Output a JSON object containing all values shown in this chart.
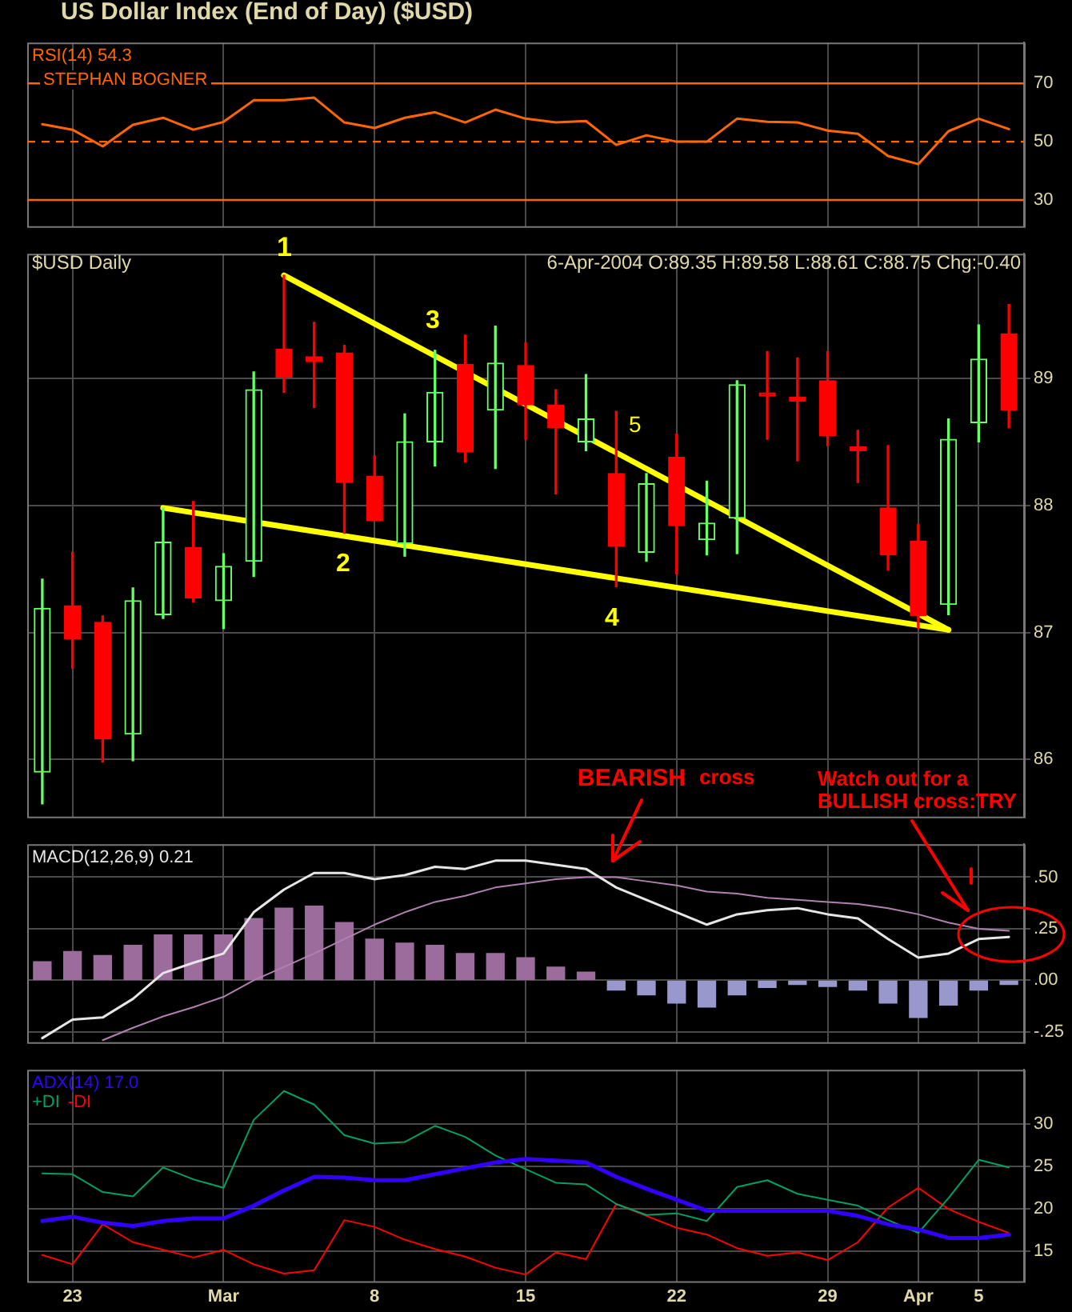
{
  "chart_data": [
    {
      "type": "line",
      "title": "US Dollar Index (End of Day) ($USD)",
      "series": [
        {
          "name": "RSI(14) 54.3",
          "color": "#ff6600",
          "values": [
            56.0,
            54.1,
            48.4,
            55.8,
            58.2,
            54.1,
            56.8,
            64.2,
            64.2,
            65.1,
            56.6,
            54.7,
            58.2,
            60.1,
            56.6,
            61.0,
            57.9,
            56.6,
            57.1,
            48.9,
            52.2,
            50.0,
            50.0,
            57.9,
            56.8,
            56.6,
            53.8,
            52.7,
            45.1,
            42.3,
            53.6,
            57.9,
            54.3
          ]
        }
      ],
      "ylim": [
        21,
        84
      ],
      "yticks": [
        30,
        50,
        70
      ],
      "ref_lines": [
        {
          "axis": "y",
          "value": 70,
          "color": "#ff6600",
          "line_style": "solid"
        },
        {
          "axis": "y",
          "value": 50,
          "color": "#ff6600",
          "line_style": "dashed"
        },
        {
          "axis": "y",
          "value": 30,
          "color": "#ff6600",
          "line_style": "solid"
        }
      ],
      "annotations": [
        "STEPHAN BOGNER"
      ],
      "grid": "x",
      "legend": "top left",
      "tick_labels": "y"
    },
    {
      "type": "candlestick",
      "title": "$USD Daily",
      "ohlc": [
        [
          85.9,
          87.42,
          85.65,
          87.19
        ],
        [
          87.21,
          87.63,
          86.72,
          86.95
        ],
        [
          87.08,
          87.13,
          85.98,
          86.16
        ],
        [
          86.2,
          87.35,
          85.99,
          87.25
        ],
        [
          87.14,
          87.98,
          87.11,
          87.71
        ],
        [
          87.67,
          88.03,
          87.24,
          87.27
        ],
        [
          87.25,
          87.62,
          87.03,
          87.52
        ],
        [
          87.56,
          89.05,
          87.44,
          88.91
        ],
        [
          89.23,
          89.81,
          88.89,
          89.01
        ],
        [
          89.17,
          89.44,
          88.77,
          89.13
        ],
        [
          89.2,
          89.26,
          87.78,
          88.18
        ],
        [
          88.23,
          88.39,
          87.88,
          87.88
        ],
        [
          87.7,
          88.72,
          87.6,
          88.5
        ],
        [
          88.5,
          89.22,
          88.31,
          88.89
        ],
        [
          89.11,
          89.34,
          88.34,
          88.42
        ],
        [
          88.75,
          89.41,
          88.29,
          89.12
        ],
        [
          89.1,
          89.28,
          88.52,
          88.79
        ],
        [
          88.79,
          88.91,
          88.09,
          88.61
        ],
        [
          88.5,
          89.03,
          88.43,
          88.68
        ],
        [
          88.25,
          88.74,
          87.36,
          87.68
        ],
        [
          87.63,
          88.25,
          87.56,
          88.17
        ],
        [
          88.38,
          88.56,
          87.46,
          87.84
        ],
        [
          87.73,
          88.19,
          87.61,
          87.86
        ],
        [
          87.9,
          88.98,
          87.62,
          88.95
        ],
        [
          88.88,
          89.21,
          88.52,
          88.86
        ],
        [
          88.85,
          89.16,
          88.35,
          88.82
        ],
        [
          88.98,
          89.21,
          88.47,
          88.55
        ],
        [
          88.46,
          88.59,
          88.18,
          88.43
        ],
        [
          87.98,
          88.47,
          87.49,
          87.61
        ],
        [
          87.72,
          87.85,
          87.03,
          87.13
        ],
        [
          87.22,
          88.68,
          87.14,
          88.52
        ],
        [
          88.65,
          89.42,
          88.5,
          89.15
        ],
        [
          89.35,
          89.58,
          88.61,
          88.75
        ]
      ],
      "colors": [
        "#66ff66",
        "#ff0000",
        "#ff0000",
        "#66ff66",
        "#66ff66",
        "#ff0000",
        "#66ff66",
        "#66ff66",
        "#ff0000",
        "#ff0000",
        "#ff0000",
        "#ff0000",
        "#66ff66",
        "#66ff66",
        "#ff0000",
        "#66ff66",
        "#ff0000",
        "#ff0000",
        "#66ff66",
        "#ff0000",
        "#66ff66",
        "#ff0000",
        "#66ff66",
        "#66ff66",
        "#ff0000",
        "#ff0000",
        "#ff0000",
        "#ff0000",
        "#ff0000",
        "#ff0000",
        "#66ff66",
        "#66ff66",
        "#ff0000"
      ],
      "series": [
        {
          "type": "line",
          "color": "#ffff00",
          "values": [
            null,
            null,
            null,
            null,
            null,
            null,
            null,
            null,
            89.81,
            null,
            null,
            null,
            null,
            null,
            null,
            null,
            null,
            null,
            null,
            null,
            null,
            null,
            null,
            null,
            null,
            null,
            null,
            null,
            null,
            null,
            87.02,
            null,
            null
          ]
        },
        {
          "type": "line",
          "color": "#ffff00",
          "values": [
            null,
            null,
            null,
            null,
            87.98,
            null,
            null,
            null,
            null,
            null,
            null,
            null,
            null,
            null,
            null,
            null,
            null,
            null,
            null,
            null,
            null,
            null,
            null,
            null,
            null,
            null,
            null,
            null,
            null,
            null,
            87.02,
            null,
            null
          ]
        }
      ],
      "ylim": [
        85.55,
        89.98
      ],
      "yticks": [
        86,
        87,
        88,
        89
      ],
      "annotations": [
        "6-Apr-2004 O:89.35 H:89.58 L:88.61 C:88.75 Chg:-0.40",
        "1",
        "2",
        "3",
        "4",
        "5"
      ],
      "grid": true,
      "tick_labels": "y"
    },
    {
      "type": "line",
      "series": [
        {
          "name": "MACD(12,26,9) 0.21",
          "color": "#e6e6e6",
          "values": [
            -0.28,
            -0.19,
            -0.18,
            -0.09,
            0.035,
            0.085,
            0.13,
            0.33,
            0.44,
            0.52,
            0.52,
            0.49,
            0.51,
            0.55,
            0.54,
            0.58,
            0.58,
            0.56,
            0.54,
            0.45,
            0.39,
            0.33,
            0.27,
            0.32,
            0.34,
            0.35,
            0.32,
            0.3,
            0.2,
            0.11,
            0.13,
            0.2,
            0.21
          ]
        },
        {
          "color": "#b080b0",
          "values": [
            null,
            null,
            -0.29,
            -0.23,
            -0.175,
            -0.13,
            -0.08,
            0,
            0.065,
            0.13,
            0.2,
            0.27,
            0.33,
            0.38,
            0.41,
            0.45,
            0.47,
            0.49,
            0.5,
            0.5,
            0.48,
            0.46,
            0.43,
            0.42,
            0.4,
            0.39,
            0.38,
            0.37,
            0.35,
            0.32,
            0.28,
            0.25,
            0.24
          ]
        },
        {
          "type": "bar",
          "colors": [
            "#9c6c9c",
            "#9c6c9c",
            "#9c6c9c",
            "#9c6c9c",
            "#9c6c9c",
            "#9c6c9c",
            "#9c6c9c",
            "#9c6c9c",
            "#9c6c9c",
            "#9c6c9c",
            "#9c6c9c",
            "#9c6c9c",
            "#9c6c9c",
            "#9c6c9c",
            "#9c6c9c",
            "#9c6c9c",
            "#9c6c9c",
            "#9c6c9c",
            "#9c6c9c",
            "#9898cc",
            "#9898cc",
            "#9898cc",
            "#9898cc",
            "#9898cc",
            "#9898cc",
            "#9898cc",
            "#9898cc",
            "#9898cc",
            "#9898cc",
            "#9898cc",
            "#9898cc",
            "#9898cc",
            "#9898cc"
          ],
          "values": [
            0.09,
            0.14,
            0.12,
            0.17,
            0.22,
            0.22,
            0.22,
            0.3,
            0.35,
            0.36,
            0.28,
            0.2,
            0.18,
            0.17,
            0.13,
            0.13,
            0.11,
            0.064,
            0.04,
            -0.047,
            -0.07,
            -0.11,
            -0.13,
            -0.07,
            -0.035,
            -0.02,
            -0.03,
            -0.047,
            -0.11,
            -0.18,
            -0.12,
            -0.047,
            -0.02
          ]
        }
      ],
      "ylim": [
        -0.3,
        0.66
      ],
      "yticks": [
        {
          "value": -0.25,
          "label": "-.25"
        },
        {
          "value": 0,
          "label": ".00"
        },
        {
          "value": 0.25,
          "label": ".25"
        },
        {
          "value": 0.5,
          "label": ".50"
        }
      ],
      "annotations": [
        "BEARISH",
        "cross",
        "Watch out for a BULLISH cross:TRY"
      ],
      "grid": true,
      "legend": "top left",
      "tick_labels": "y"
    },
    {
      "type": "line",
      "categories": [
        null,
        "23",
        null,
        null,
        null,
        null,
        "Mar",
        null,
        null,
        null,
        null,
        "8",
        null,
        null,
        null,
        null,
        "15",
        null,
        null,
        null,
        null,
        "22",
        null,
        null,
        null,
        null,
        "29",
        null,
        null,
        "Apr",
        null,
        "5",
        null
      ],
      "series": [
        {
          "name": "ADX(14) 17.0",
          "color": "#3300ff",
          "values": [
            18.6,
            19.1,
            18.4,
            18.0,
            18.6,
            18.9,
            18.9,
            20.4,
            22.2,
            23.8,
            23.7,
            23.4,
            23.4,
            24.1,
            24.8,
            25.5,
            25.9,
            25.7,
            25.5,
            23.8,
            22.4,
            21.1,
            19.8,
            19.8,
            19.8,
            19.8,
            19.8,
            19.2,
            18.2,
            17.6,
            16.6,
            16.6,
            17.0
          ]
        },
        {
          "name": "+DI",
          "color": "#00a060",
          "values": [
            24.2,
            24.1,
            22.0,
            21.5,
            24.9,
            23.5,
            22.5,
            30.5,
            33.9,
            32.3,
            28.7,
            27.7,
            27.9,
            29.8,
            28.5,
            26.3,
            24.7,
            23.1,
            22.9,
            20.6,
            19.3,
            19.5,
            18.6,
            22.6,
            23.4,
            21.8,
            21.1,
            20.4,
            18.7,
            17.2,
            21.3,
            25.8,
            24.9
          ]
        },
        {
          "name": "-DI",
          "color": "#ff0000",
          "values": [
            14.6,
            13.5,
            18.2,
            16.1,
            15.2,
            14.3,
            15.2,
            13.5,
            12.4,
            12.8,
            18.7,
            17.9,
            16.4,
            15.3,
            14.4,
            13.1,
            12.3,
            14.9,
            14.1,
            20.6,
            19.2,
            17.8,
            17.0,
            15.4,
            14.5,
            14.9,
            14.0,
            16.1,
            20.2,
            22.5,
            20.0,
            18.5,
            17.2
          ]
        }
      ],
      "ylim": [
        11.5,
        36.4
      ],
      "yticks": [
        15,
        20,
        25,
        30
      ],
      "grid": true,
      "legend": "top left"
    }
  ]
}
